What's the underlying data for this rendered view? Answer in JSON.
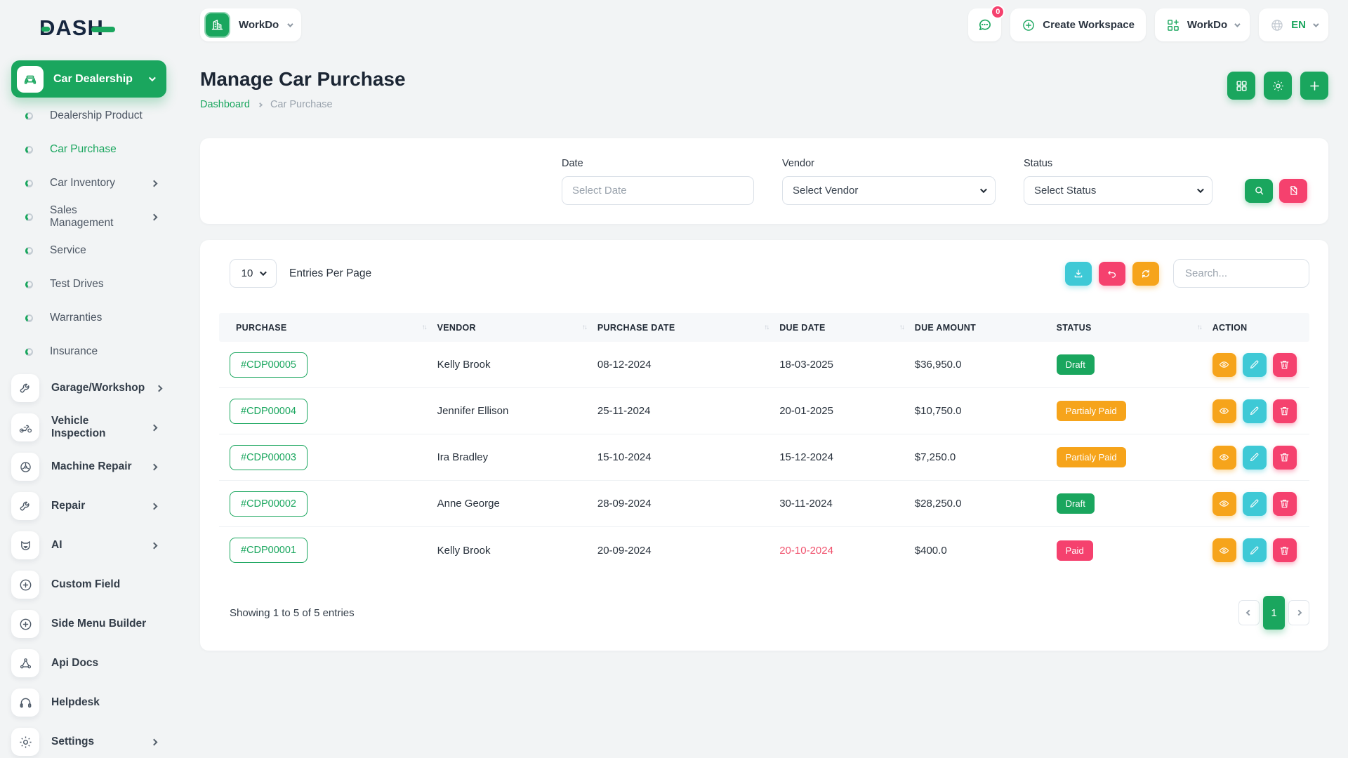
{
  "brand": {
    "logo_text": "DASH"
  },
  "workspace_switcher": {
    "name": "WorkDo",
    "icon": "building-icon"
  },
  "topbar": {
    "messages_badge": "0",
    "create_workspace_label": "Create Workspace",
    "workspace_name": "WorkDo",
    "language": "EN"
  },
  "sidebar": {
    "group": {
      "label": "Car Dealership",
      "icon": "car-icon"
    },
    "group_items": [
      {
        "label": "Dealership Product",
        "active": false,
        "chevron": false
      },
      {
        "label": "Car Purchase",
        "active": true,
        "chevron": false
      },
      {
        "label": "Car Inventory",
        "active": false,
        "chevron": true
      },
      {
        "label": "Sales Management",
        "active": false,
        "chevron": true
      },
      {
        "label": "Service",
        "active": false,
        "chevron": false
      },
      {
        "label": "Test Drives",
        "active": false,
        "chevron": false
      },
      {
        "label": "Warranties",
        "active": false,
        "chevron": false
      },
      {
        "label": "Insurance",
        "active": false,
        "chevron": false
      }
    ],
    "menu_items": [
      {
        "label": "Garage/Workshop",
        "icon": "wrench-icon",
        "chevron": true
      },
      {
        "label": "Vehicle Inspection",
        "icon": "motorbike-icon",
        "chevron": true
      },
      {
        "label": "Machine Repair",
        "icon": "machine-icon",
        "chevron": true
      },
      {
        "label": "Repair",
        "icon": "wrench-icon",
        "chevron": true
      },
      {
        "label": "AI",
        "icon": "ai-icon",
        "chevron": true
      },
      {
        "label": "Custom Field",
        "icon": "plus-circle-icon",
        "chevron": false
      },
      {
        "label": "Side Menu Builder",
        "icon": "plus-circle-icon",
        "chevron": false
      },
      {
        "label": "Api Docs",
        "icon": "api-icon",
        "chevron": false
      },
      {
        "label": "Helpdesk",
        "icon": "headset-icon",
        "chevron": false
      },
      {
        "label": "Settings",
        "icon": "gear-icon",
        "chevron": true
      }
    ]
  },
  "page": {
    "title": "Manage Car Purchase",
    "breadcrumb": [
      {
        "label": "Dashboard"
      },
      {
        "label": "Car Purchase"
      }
    ]
  },
  "filters": {
    "date": {
      "label": "Date",
      "placeholder": "Select Date"
    },
    "vendor": {
      "label": "Vendor",
      "value": "Select Vendor"
    },
    "status": {
      "label": "Status",
      "value": "Select Status"
    }
  },
  "table_controls": {
    "entries_per_page_value": "10",
    "entries_per_page_label": "Entries Per Page",
    "search_placeholder": "Search..."
  },
  "table": {
    "columns": [
      {
        "label": "PURCHASE",
        "sortable": true
      },
      {
        "label": "VENDOR",
        "sortable": true
      },
      {
        "label": "PURCHASE DATE",
        "sortable": true
      },
      {
        "label": "DUE DATE",
        "sortable": true
      },
      {
        "label": "DUE AMOUNT",
        "sortable": false
      },
      {
        "label": "STATUS",
        "sortable": true
      },
      {
        "label": "ACTION",
        "sortable": false
      }
    ],
    "rows": [
      {
        "purchase": "#CDP00005",
        "vendor": "Kelly Brook",
        "purchase_date": "08-12-2024",
        "due_date": "18-03-2025",
        "due_amount": "$36,950.0",
        "status": "Draft",
        "status_color": "green",
        "due_overdue": false
      },
      {
        "purchase": "#CDP00004",
        "vendor": "Jennifer Ellison",
        "purchase_date": "25-11-2024",
        "due_date": "20-01-2025",
        "due_amount": "$10,750.0",
        "status": "Partialy Paid",
        "status_color": "orange",
        "due_overdue": false
      },
      {
        "purchase": "#CDP00003",
        "vendor": "Ira Bradley",
        "purchase_date": "15-10-2024",
        "due_date": "15-12-2024",
        "due_amount": "$7,250.0",
        "status": "Partialy Paid",
        "status_color": "orange",
        "due_overdue": false
      },
      {
        "purchase": "#CDP00002",
        "vendor": "Anne George",
        "purchase_date": "28-09-2024",
        "due_date": "30-11-2024",
        "due_amount": "$28,250.0",
        "status": "Draft",
        "status_color": "green",
        "due_overdue": false
      },
      {
        "purchase": "#CDP00001",
        "vendor": "Kelly Brook",
        "purchase_date": "20-09-2024",
        "due_date": "20-10-2024",
        "due_amount": "$400.0",
        "status": "Paid",
        "status_color": "pink",
        "due_overdue": true
      }
    ],
    "footer": {
      "showing_text": "Showing 1 to 5 of 5 entries",
      "current_page": "1"
    }
  },
  "colors": {
    "green": "#1aa65e",
    "pink": "#f5416e",
    "orange": "#f6a41b",
    "teal": "#3ec9d6",
    "navy": "#16263f",
    "overdue": "#f0536e"
  }
}
